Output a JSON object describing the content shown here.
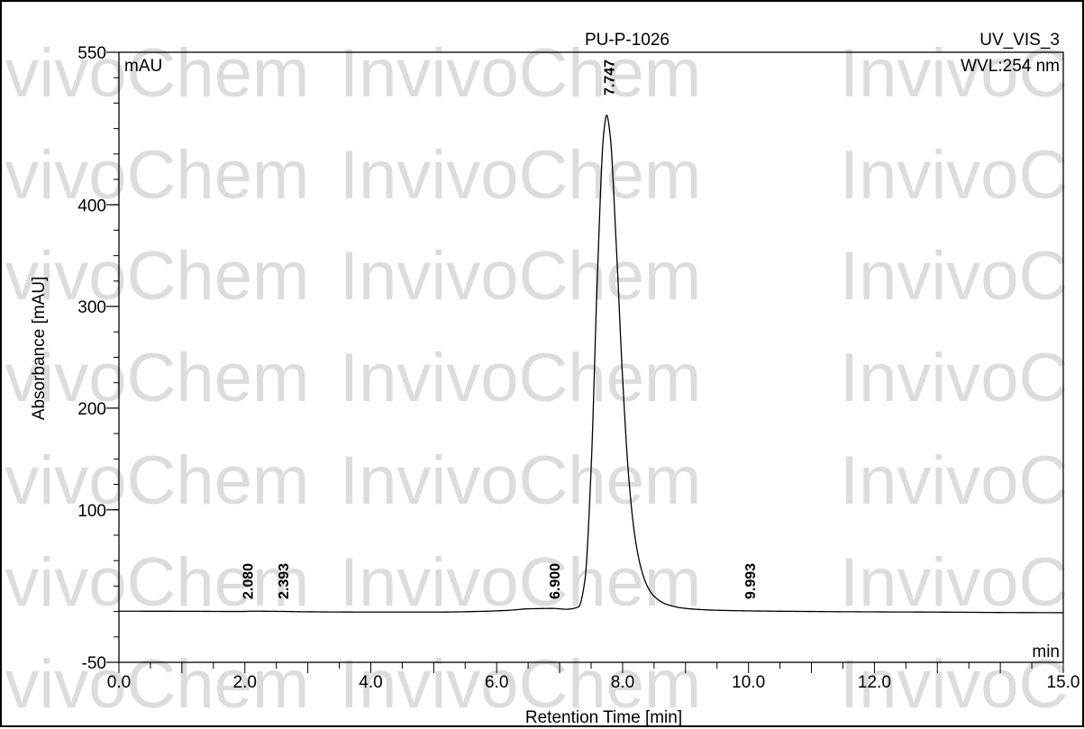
{
  "chart_data": {
    "type": "line",
    "title": "PU-P-1026",
    "channel": "UV_VIS_3",
    "wavelength": "WVL:254 nm",
    "xlabel": "Retention Time [min]",
    "ylabel": "Absorbance [mAU]",
    "y_unit_label": "mAU",
    "x_unit_label": "min",
    "xlim": [
      0,
      15
    ],
    "ylim": [
      -50,
      550
    ],
    "x_tick_labels": [
      "0.0",
      "2.0",
      "4.0",
      "6.0",
      "8.0",
      "10.0",
      "12.0",
      "15.0"
    ],
    "y_tick_labels": [
      "-50",
      "100",
      "200",
      "300",
      "400",
      "550"
    ],
    "series": [
      {
        "x": [
          0.0,
          1.0,
          2.0,
          2.08,
          2.393,
          3.0,
          4.0,
          5.0,
          5.8,
          6.2,
          6.5,
          6.9,
          7.1,
          7.3,
          7.4,
          7.5,
          7.6,
          7.7,
          7.747,
          7.8,
          7.9,
          8.0,
          8.1,
          8.2,
          8.3,
          8.4,
          8.5,
          8.7,
          9.0,
          9.5,
          9.993,
          11.0,
          12.0,
          13.0,
          14.0,
          15.0
        ],
        "y": [
          0.3,
          0.2,
          0.0,
          0.3,
          0.2,
          -0.3,
          -0.6,
          -0.6,
          0.2,
          1.2,
          2.6,
          3.0,
          2.2,
          4.5,
          30.0,
          140.0,
          330.0,
          470.0,
          488.0,
          470.0,
          360.0,
          230.0,
          130.0,
          72.0,
          41.0,
          24.0,
          15.0,
          7.0,
          3.0,
          1.2,
          0.6,
          0.0,
          -0.4,
          -0.6,
          -1.0,
          -1.2
        ]
      }
    ],
    "peak_labels": [
      "2.080",
      "2.393",
      "6.900",
      "7.747",
      "9.993"
    ]
  },
  "watermark_text": "InvivoChem"
}
